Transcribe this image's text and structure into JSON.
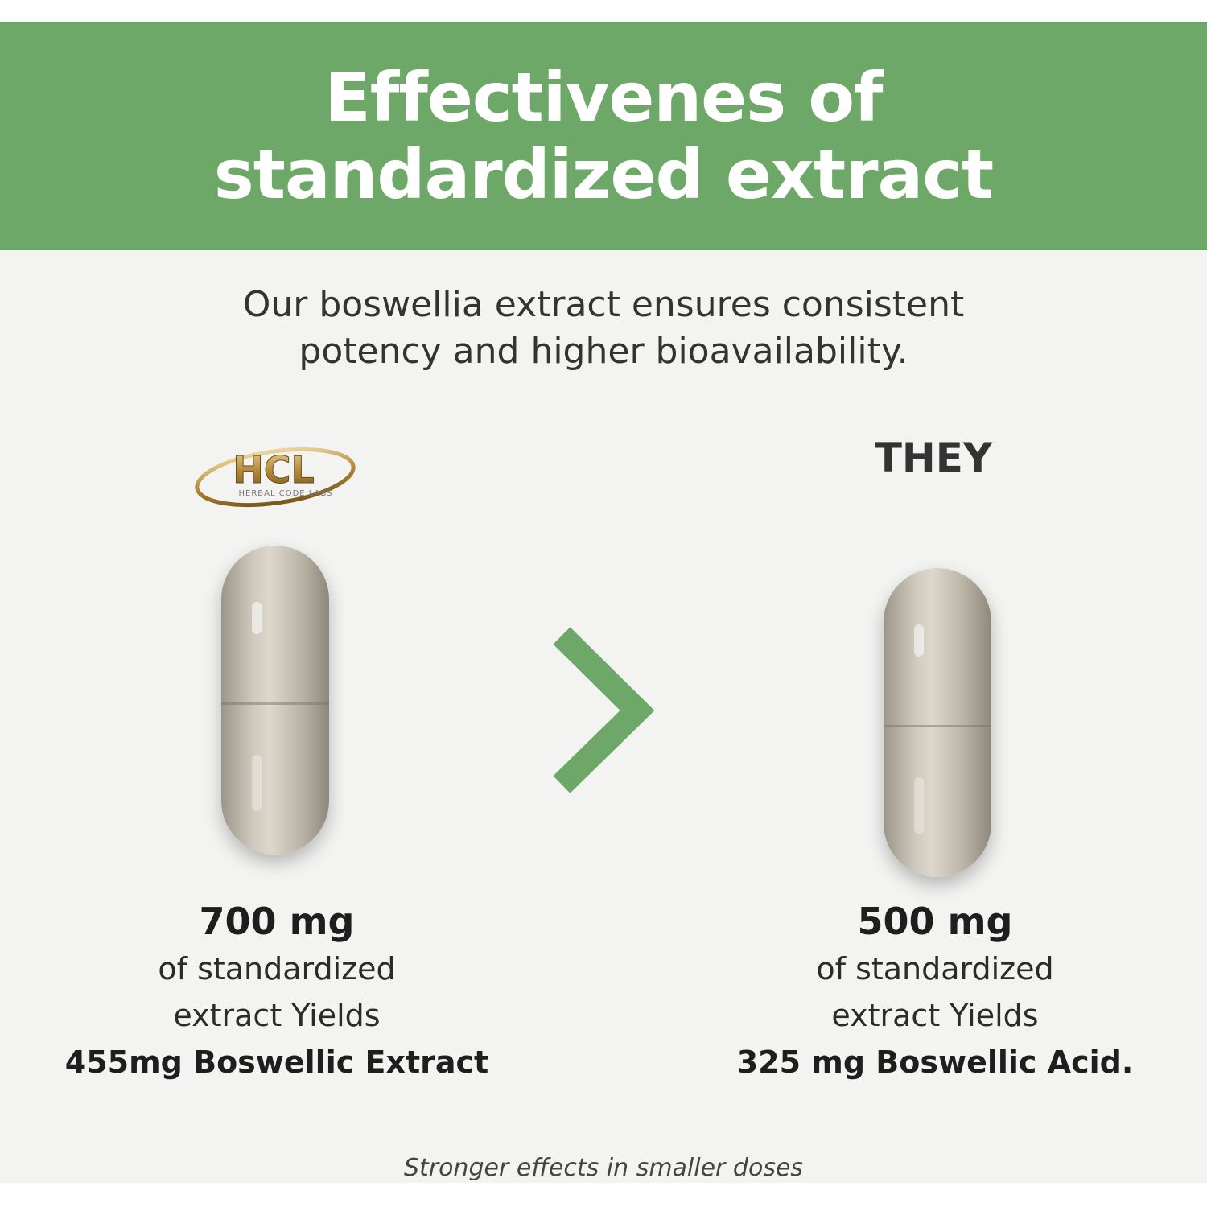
{
  "banner": {
    "title_line1": "Effectivenes of",
    "title_line2": "standardized extract",
    "color": "#6da868"
  },
  "subtitle": {
    "line1": "Our boswellia extract ensures consistent",
    "line2": "potency and higher bioavailability."
  },
  "left": {
    "logo_text": "HCL",
    "logo_subtext": "HERBAL CODE LABS",
    "amount": "700 mg",
    "line1": "of standardized",
    "line2": "extract Yields",
    "result": "455mg Boswellic Extract"
  },
  "comparison_icon": "chevron-right-icon",
  "right": {
    "label": "THEY",
    "amount": "500 mg",
    "line1": "of standardized",
    "line2": "extract Yields",
    "result": "325 mg Boswellic Acid."
  },
  "footer": "Stronger effects in smaller doses"
}
